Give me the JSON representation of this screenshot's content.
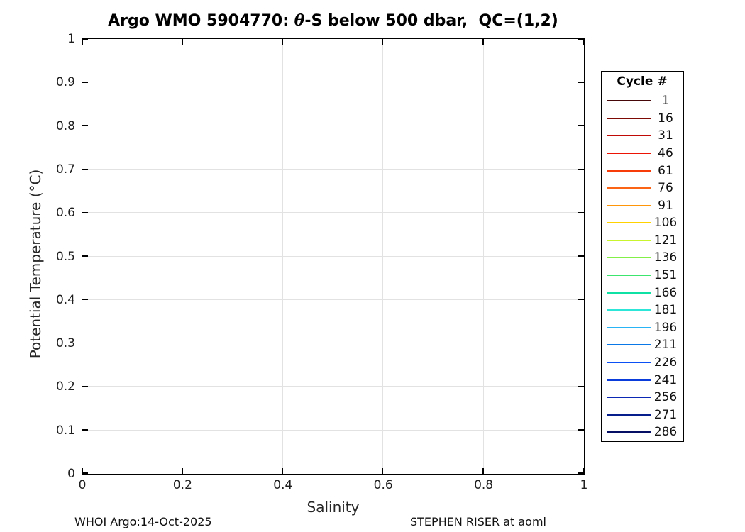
{
  "chart_data": {
    "type": "line",
    "title": "Argo WMO 5904770: θ-S below 500 dbar,  QC=(1,2)",
    "title_parts": {
      "prefix": "Argo WMO 5904770: ",
      "theta": "θ",
      "suffix": "-S below 500 dbar,  QC=(1,2)"
    },
    "xlabel": "Salinity",
    "ylabel": "Potential Temperature (°C)",
    "xlim": [
      0,
      1
    ],
    "ylim": [
      0,
      1
    ],
    "grid": true,
    "xticks": {
      "values": [
        0,
        0.2,
        0.4,
        0.6,
        0.8,
        1
      ],
      "labels": [
        "0",
        "0.2",
        "0.4",
        "0.6",
        "0.8",
        "1"
      ]
    },
    "yticks": {
      "values": [
        0,
        0.1,
        0.2,
        0.3,
        0.4,
        0.5,
        0.6,
        0.7,
        0.8,
        0.9,
        1
      ],
      "labels": [
        "0",
        "0.1",
        "0.2",
        "0.3",
        "0.4",
        "0.5",
        "0.6",
        "0.7",
        "0.8",
        "0.9",
        "1"
      ]
    },
    "series": [],
    "legend": {
      "title": "Cycle #",
      "position": "outside-right",
      "entries": [
        {
          "label": "1",
          "color": "#460808"
        },
        {
          "label": "16",
          "color": "#7d0a05"
        },
        {
          "label": "31",
          "color": "#c00a05"
        },
        {
          "label": "46",
          "color": "#eb1405"
        },
        {
          "label": "61",
          "color": "#f73c0a"
        },
        {
          "label": "76",
          "color": "#fa6414"
        },
        {
          "label": "91",
          "color": "#ff960a"
        },
        {
          "label": "106",
          "color": "#ffd200"
        },
        {
          "label": "121",
          "color": "#c8f52d"
        },
        {
          "label": "136",
          "color": "#82f046"
        },
        {
          "label": "151",
          "color": "#3ce66e"
        },
        {
          "label": "166",
          "color": "#0fe1a5"
        },
        {
          "label": "181",
          "color": "#2de6d7"
        },
        {
          "label": "196",
          "color": "#28b4f5"
        },
        {
          "label": "211",
          "color": "#0a78e6"
        },
        {
          "label": "226",
          "color": "#0a50f5"
        },
        {
          "label": "241",
          "color": "#0a3cdc"
        },
        {
          "label": "256",
          "color": "#0a28b4"
        },
        {
          "label": "271",
          "color": "#051e8c"
        },
        {
          "label": "286",
          "color": "#051064"
        }
      ]
    },
    "grid_color": "#e2e2e2",
    "axis_color": "#000000"
  },
  "footer": {
    "left": "WHOI Argo:14-Oct-2025",
    "right": "STEPHEN RISER at aoml"
  }
}
